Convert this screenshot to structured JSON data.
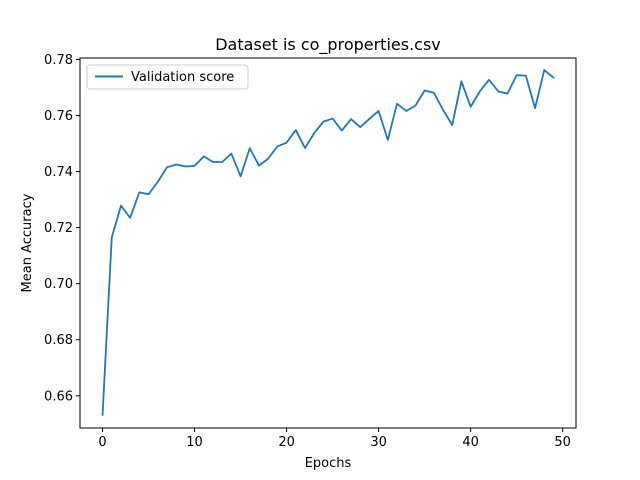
{
  "chart_data": {
    "type": "line",
    "title": "Dataset is co_properties.csv",
    "xlabel": "Epochs",
    "ylabel": "Mean Accuracy",
    "xlim": [
      -2.45,
      51.45
    ],
    "ylim": [
      0.6485,
      0.7805
    ],
    "xticks": [
      0,
      10,
      20,
      30,
      40,
      50
    ],
    "yticks": [
      0.66,
      0.68,
      0.7,
      0.72,
      0.74,
      0.76,
      0.78
    ],
    "ytick_labels": [
      "0.66",
      "0.68",
      "0.70",
      "0.72",
      "0.74",
      "0.76",
      "0.78"
    ],
    "grid": false,
    "legend_position": "upper-left",
    "series": [
      {
        "name": "Validation score",
        "color": "#1f77b4",
        "x": [
          0,
          1,
          2,
          3,
          4,
          5,
          6,
          7,
          8,
          9,
          10,
          11,
          12,
          13,
          14,
          15,
          16,
          17,
          18,
          19,
          20,
          21,
          22,
          23,
          24,
          25,
          26,
          27,
          28,
          29,
          30,
          31,
          32,
          33,
          34,
          35,
          36,
          37,
          38,
          39,
          40,
          41,
          42,
          43,
          44,
          45,
          46,
          47,
          48,
          49
        ],
        "values": [
          0.6532,
          0.7164,
          0.7278,
          0.7235,
          0.7326,
          0.7319,
          0.7363,
          0.7415,
          0.7425,
          0.7418,
          0.742,
          0.7454,
          0.7434,
          0.7434,
          0.7464,
          0.7383,
          0.7483,
          0.7421,
          0.7446,
          0.749,
          0.7503,
          0.7548,
          0.7484,
          0.7537,
          0.7578,
          0.7589,
          0.7546,
          0.7587,
          0.7558,
          0.7588,
          0.7616,
          0.7513,
          0.7642,
          0.7616,
          0.7635,
          0.7689,
          0.7681,
          0.762,
          0.7566,
          0.7722,
          0.7631,
          0.7686,
          0.7727,
          0.7686,
          0.7678,
          0.7744,
          0.7742,
          0.7626,
          0.7762,
          0.7735
        ]
      }
    ]
  }
}
